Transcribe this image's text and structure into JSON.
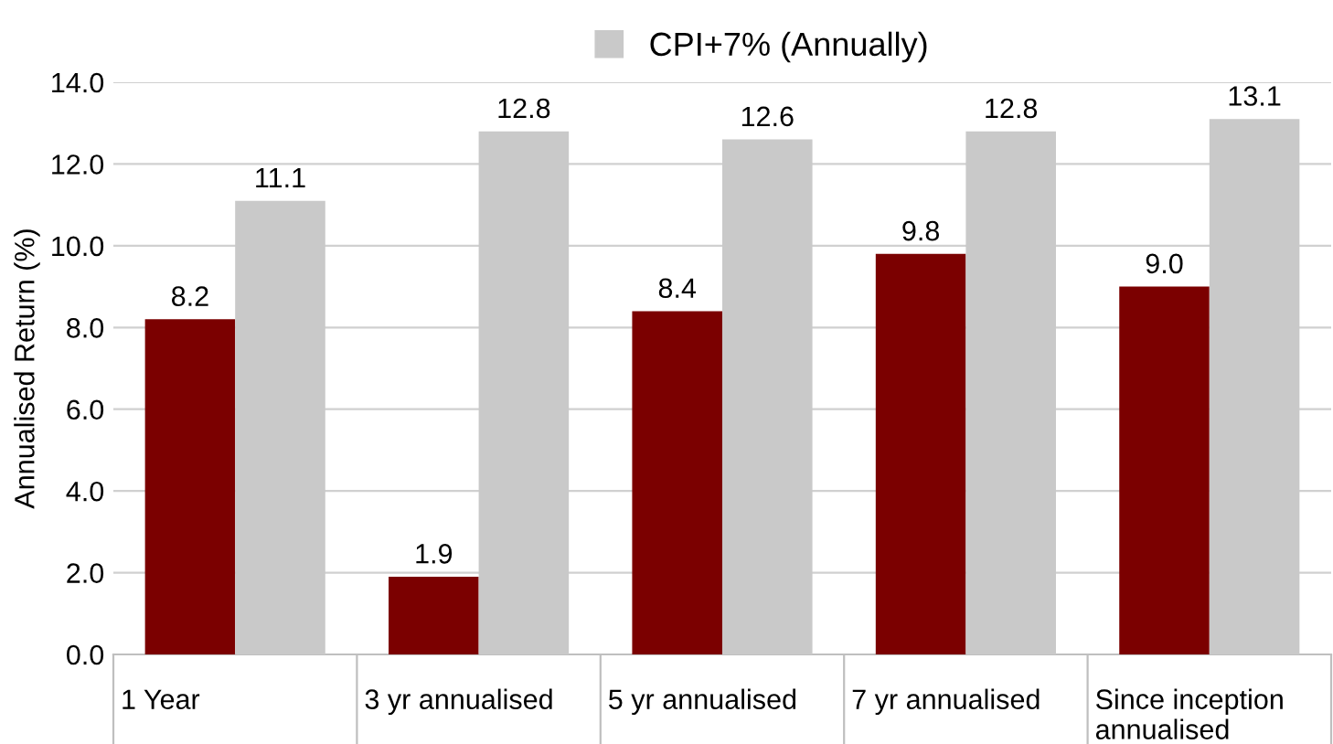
{
  "chart_data": {
    "type": "bar",
    "ylabel": "Annualised Return (%)",
    "categories": [
      "1 Year",
      "3 yr annualised",
      "5 yr annualised",
      "7 yr annualised",
      "Since inception annualised"
    ],
    "series": [
      {
        "color": "#7b0000",
        "values": [
          8.2,
          1.9,
          8.4,
          9.8,
          9.0
        ],
        "value_labels": [
          "8.2",
          "1.9",
          "8.4",
          "9.8",
          "9.0"
        ]
      },
      {
        "name": "CPI+7% (Annually)",
        "color": "#c9c9c9",
        "values": [
          11.1,
          12.8,
          12.6,
          12.8,
          13.1
        ],
        "value_labels": [
          "11.1",
          "12.8",
          "12.6",
          "12.8",
          "13.1"
        ]
      }
    ],
    "ylim": [
      0,
      14
    ],
    "yticks": [
      {
        "value": 0,
        "label": "0.0"
      },
      {
        "value": 2,
        "label": "2.0"
      },
      {
        "value": 4,
        "label": "4.0"
      },
      {
        "value": 6,
        "label": "6.0"
      },
      {
        "value": 8,
        "label": "8.0"
      },
      {
        "value": 10,
        "label": "10.0"
      },
      {
        "value": 12,
        "label": "12.0"
      },
      {
        "value": 14,
        "label": "14.0"
      }
    ],
    "grid": "y",
    "legend": "top left"
  }
}
